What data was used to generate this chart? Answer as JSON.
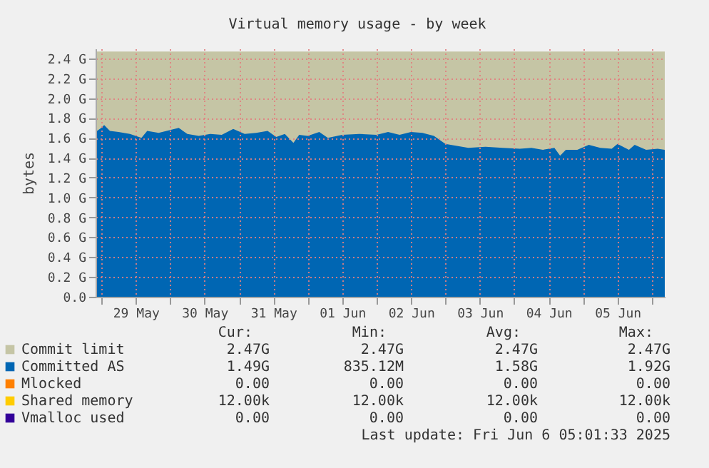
{
  "chart_data": {
    "type": "area",
    "title": "Virtual memory usage - by week",
    "ylabel": "bytes",
    "xlim": [
      "2025-05-28T22:00",
      "2025-06-06T04:30"
    ],
    "xticks": [
      {
        "value": "2025-05-29T00:00",
        "label": null
      },
      {
        "value": "2025-05-29T12:00",
        "label": "29 May"
      },
      {
        "value": "2025-05-30T00:00",
        "label": null
      },
      {
        "value": "2025-05-30T12:00",
        "label": "30 May"
      },
      {
        "value": "2025-05-31T00:00",
        "label": null
      },
      {
        "value": "2025-05-31T12:00",
        "label": "31 May"
      },
      {
        "value": "2025-06-01T00:00",
        "label": null
      },
      {
        "value": "2025-06-01T12:00",
        "label": "01 Jun"
      },
      {
        "value": "2025-06-02T00:00",
        "label": null
      },
      {
        "value": "2025-06-02T12:00",
        "label": "02 Jun"
      },
      {
        "value": "2025-06-03T00:00",
        "label": null
      },
      {
        "value": "2025-06-03T12:00",
        "label": "03 Jun"
      },
      {
        "value": "2025-06-04T00:00",
        "label": null
      },
      {
        "value": "2025-06-04T12:00",
        "label": "04 Jun"
      },
      {
        "value": "2025-06-05T00:00",
        "label": null
      },
      {
        "value": "2025-06-05T12:00",
        "label": "05 Jun"
      },
      {
        "value": "2025-06-06T00:00",
        "label": null
      }
    ],
    "ylim": [
      0,
      2.5
    ],
    "yticks": [
      {
        "value": 0,
        "label": "0.0"
      },
      {
        "value": 0.2,
        "label": "0.2 G"
      },
      {
        "value": 0.4,
        "label": "0.4 G"
      },
      {
        "value": 0.6,
        "label": "0.6 G"
      },
      {
        "value": 0.8,
        "label": "0.8 G"
      },
      {
        "value": 1.0,
        "label": "1.0 G"
      },
      {
        "value": 1.2,
        "label": "1.2 G"
      },
      {
        "value": 1.4,
        "label": "1.4 G"
      },
      {
        "value": 1.6,
        "label": "1.6 G"
      },
      {
        "value": 1.8,
        "label": "1.8 G"
      },
      {
        "value": 2.0,
        "label": "2.0 G"
      },
      {
        "value": 2.2,
        "label": "2.2 G"
      },
      {
        "value": 2.4,
        "label": "2.4 G"
      }
    ],
    "grid": true,
    "legend": "bottom",
    "series": [
      {
        "name": "Commit limit",
        "color": "#c5c5a5",
        "type": "area",
        "x": [
          "2025-05-28T22:00",
          "2025-06-06T04:30"
        ],
        "values": [
          2.47,
          2.47
        ]
      },
      {
        "name": "Committed AS",
        "color": "#0066b3",
        "type": "area",
        "x": [
          "2025-05-28T22:00",
          "2025-05-29T00:00",
          "2025-05-29T01:00",
          "2025-05-29T03:00",
          "2025-05-29T06:00",
          "2025-05-29T10:00",
          "2025-05-29T14:00",
          "2025-05-29T16:00",
          "2025-05-29T20:00",
          "2025-05-30T00:00",
          "2025-05-30T03:00",
          "2025-05-30T06:00",
          "2025-05-30T10:00",
          "2025-05-30T14:00",
          "2025-05-30T18:00",
          "2025-05-30T22:00",
          "2025-05-31T02:00",
          "2025-05-31T06:00",
          "2025-05-31T10:00",
          "2025-05-31T13:00",
          "2025-05-31T16:00",
          "2025-05-31T19:00",
          "2025-05-31T21:00",
          "2025-06-01T00:00",
          "2025-06-01T04:00",
          "2025-06-01T07:00",
          "2025-06-01T12:00",
          "2025-06-01T18:00",
          "2025-06-02T00:00",
          "2025-06-02T04:00",
          "2025-06-02T08:00",
          "2025-06-02T12:00",
          "2025-06-02T16:00",
          "2025-06-02T20:00",
          "2025-06-03T00:00",
          "2025-06-03T04:00",
          "2025-06-03T08:00",
          "2025-06-03T14:00",
          "2025-06-03T20:00",
          "2025-06-04T02:00",
          "2025-06-04T06:00",
          "2025-06-04T10:00",
          "2025-06-04T14:00",
          "2025-06-04T16:00",
          "2025-06-04T18:00",
          "2025-06-04T22:00",
          "2025-06-05T02:00",
          "2025-06-05T06:00",
          "2025-06-05T10:00",
          "2025-06-05T12:00",
          "2025-06-05T16:00",
          "2025-06-05T18:00",
          "2025-06-05T22:00",
          "2025-06-06T02:00",
          "2025-06-06T04:30"
        ],
        "values": [
          1.66,
          1.7,
          1.73,
          1.67,
          1.66,
          1.64,
          1.6,
          1.67,
          1.65,
          1.68,
          1.7,
          1.64,
          1.62,
          1.64,
          1.63,
          1.69,
          1.64,
          1.65,
          1.67,
          1.61,
          1.64,
          1.55,
          1.63,
          1.62,
          1.66,
          1.6,
          1.63,
          1.64,
          1.63,
          1.66,
          1.63,
          1.66,
          1.65,
          1.62,
          1.54,
          1.52,
          1.5,
          1.51,
          1.5,
          1.49,
          1.5,
          1.48,
          1.5,
          1.42,
          1.48,
          1.48,
          1.53,
          1.5,
          1.49,
          1.54,
          1.48,
          1.53,
          1.48,
          1.49,
          1.48
        ]
      },
      {
        "name": "Mlocked",
        "color": "#ff8000",
        "type": "line"
      },
      {
        "name": "Shared memory",
        "color": "#ffcc00",
        "type": "line"
      },
      {
        "name": "Vmalloc used",
        "color": "#330099",
        "type": "line"
      }
    ],
    "annotations": [
      "Cur:",
      "Min:",
      "Avg:",
      "Max:",
      "2.47G",
      "2.47G",
      "2.47G",
      "2.47G",
      "1.49G",
      "835.12M",
      "1.58G",
      "1.92G",
      "0.00",
      "0.00",
      "0.00",
      "0.00",
      "12.00k",
      "12.00k",
      "12.00k",
      "12.00k",
      "0.00",
      "0.00",
      "0.00",
      "0.00",
      "Last update: Fri Jun  6 05:01:33 2025"
    ]
  }
}
